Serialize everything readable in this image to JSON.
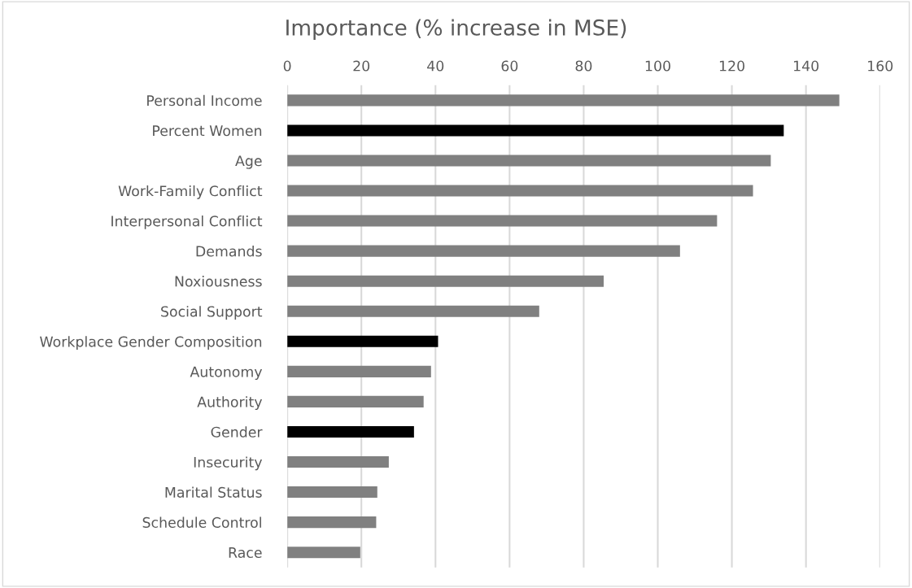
{
  "chart_data": {
    "type": "bar",
    "orientation": "horizontal",
    "title": "Importance (% increase in MSE)",
    "categories": [
      "Personal Income",
      "Percent Women",
      "Age",
      "Work-Family Conflict",
      "Interpersonal Conflict",
      "Demands",
      "Noxiousness",
      "Social Support",
      "Workplace Gender Composition",
      "Autonomy",
      "Authority",
      "Gender",
      "Insecurity",
      "Marital Status",
      "Schedule Control",
      "Race"
    ],
    "values": [
      149,
      134,
      130.5,
      125.7,
      116,
      106,
      85.4,
      68,
      40.7,
      38.8,
      36.8,
      34.2,
      27.4,
      24.3,
      24,
      19.7
    ],
    "colors": [
      "#808080",
      "#000000",
      "#808080",
      "#808080",
      "#808080",
      "#808080",
      "#808080",
      "#808080",
      "#000000",
      "#808080",
      "#808080",
      "#000000",
      "#808080",
      "#808080",
      "#808080",
      "#808080"
    ],
    "xlim": [
      0,
      160
    ],
    "xticks": [
      0,
      20,
      40,
      60,
      80,
      100,
      120,
      140,
      160
    ],
    "grid": "x"
  }
}
